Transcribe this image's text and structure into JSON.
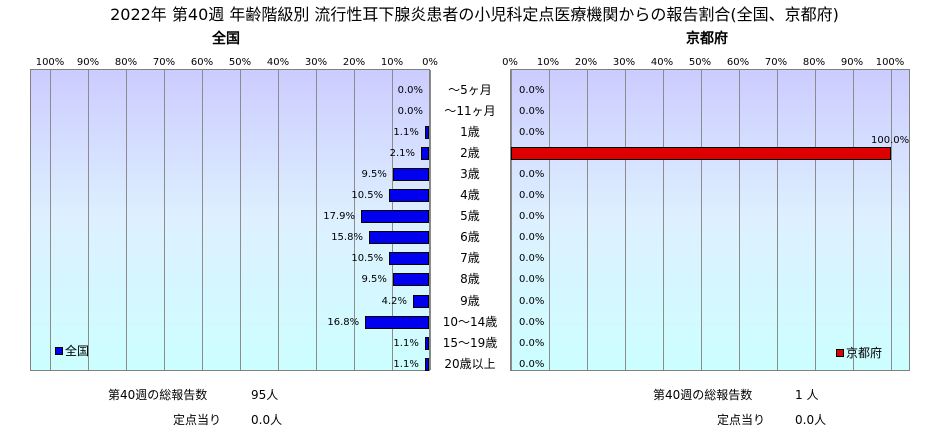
{
  "chart_data": {
    "type": "bar",
    "title": "2022年 第40週 年齢階級別 流行性耳下腺炎患者の小児科定点医療機関からの報告割合(全国、京都府)",
    "categories": [
      "～5ヶ月",
      "～11ヶ月",
      "1歳",
      "2歳",
      "3歳",
      "4歳",
      "5歳",
      "6歳",
      "7歳",
      "8歳",
      "9歳",
      "10～14歳",
      "15～19歳",
      "20歳以上"
    ],
    "xlim": [
      0,
      100
    ],
    "x_tick_labels": [
      "0%",
      "10%",
      "20%",
      "30%",
      "40%",
      "50%",
      "60%",
      "70%",
      "80%",
      "90%",
      "100%"
    ],
    "grid": true,
    "series": [
      {
        "name": "全国",
        "color": "#0000ee",
        "values": [
          0.0,
          0.0,
          1.1,
          2.1,
          9.5,
          10.5,
          17.9,
          15.8,
          10.5,
          9.5,
          4.2,
          16.8,
          1.1,
          1.1
        ],
        "labels": [
          "0.0%",
          "0.0%",
          "1.1%",
          "2.1%",
          "9.5%",
          "10.5%",
          "17.9%",
          "15.8%",
          "10.5%",
          "9.5%",
          "4.2%",
          "16.8%",
          "1.1%",
          "1.1%"
        ]
      },
      {
        "name": "京都府",
        "color": "#dd0000",
        "values": [
          0.0,
          0.0,
          0.0,
          100.0,
          0.0,
          0.0,
          0.0,
          0.0,
          0.0,
          0.0,
          0.0,
          0.0,
          0.0,
          0.0
        ],
        "labels": [
          "0.0%",
          "0.0%",
          "0.0%",
          "100.0%",
          "0.0%",
          "0.0%",
          "0.0%",
          "0.0%",
          "0.0%",
          "0.0%",
          "0.0%",
          "0.0%",
          "0.0%",
          "0.0%"
        ]
      }
    ]
  },
  "panels": {
    "left": {
      "subtitle": "全国",
      "legend": "全国",
      "total_label": "第40週の総報告数",
      "total_value": "95人",
      "per_label": "定点当り",
      "per_value": "0.0人"
    },
    "right": {
      "subtitle": "京都府",
      "legend": "京都府",
      "total_label": "第40週の総報告数",
      "total_value": "1 人",
      "per_label": "定点当り",
      "per_value": "0.0人"
    }
  }
}
